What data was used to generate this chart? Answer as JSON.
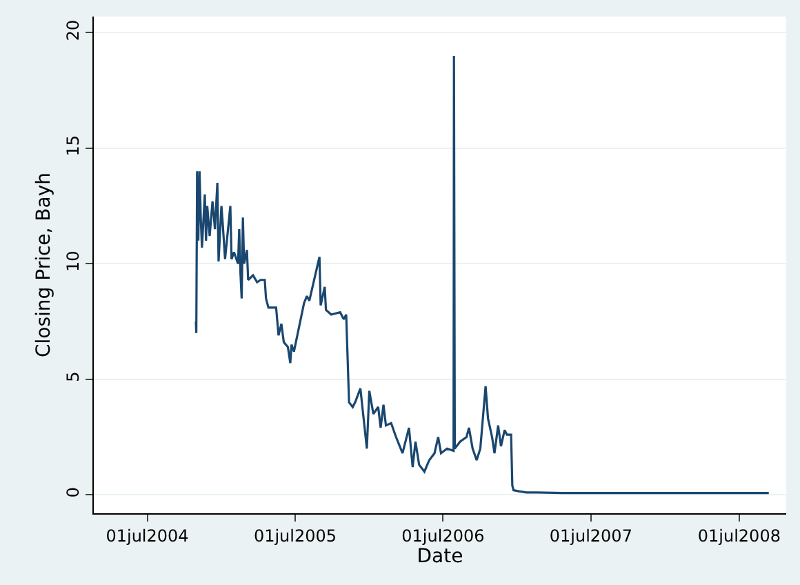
{
  "chart_data": {
    "type": "line",
    "xlabel": "Date",
    "ylabel": "Closing Price, Bayh",
    "xlim": [
      "2004-02-20",
      "2008-10-25"
    ],
    "xticks": [
      {
        "value": "2004-07-01",
        "label": "01jul2004"
      },
      {
        "value": "2005-07-01",
        "label": "01jul2005"
      },
      {
        "value": "2006-07-01",
        "label": "01jul2006"
      },
      {
        "value": "2007-07-01",
        "label": "01jul2007"
      },
      {
        "value": "2008-07-01",
        "label": "01jul2008"
      }
    ],
    "ylim": [
      -0.8,
      20.7
    ],
    "yticks": [
      0,
      5,
      10,
      15,
      20
    ],
    "grid": "y",
    "series": [
      {
        "color": "#1a476f",
        "x": [
          "2004-10-29",
          "2004-10-30",
          "2004-11-01",
          "2004-11-04",
          "2004-11-07",
          "2004-11-10",
          "2004-11-13",
          "2004-11-20",
          "2004-11-23",
          "2004-11-26",
          "2004-12-02",
          "2004-12-09",
          "2004-12-15",
          "2004-12-21",
          "2004-12-24",
          "2004-12-31",
          "2005-01-03",
          "2005-01-09",
          "2005-01-22",
          "2005-01-25",
          "2005-01-31",
          "2005-02-10",
          "2005-02-13",
          "2005-02-16",
          "2005-02-19",
          "2005-02-22",
          "2005-02-25",
          "2005-03-04",
          "2005-03-07",
          "2005-03-19",
          "2005-03-29",
          "2005-04-07",
          "2005-04-17",
          "2005-04-20",
          "2005-04-26",
          "2005-05-15",
          "2005-05-21",
          "2005-05-28",
          "2005-06-03",
          "2005-06-13",
          "2005-06-19",
          "2005-06-22",
          "2005-06-28",
          "2005-07-23",
          "2005-07-30",
          "2005-08-05",
          "2005-08-30",
          "2005-09-02",
          "2005-09-12",
          "2005-09-15",
          "2005-09-28",
          "2005-10-20",
          "2005-10-29",
          "2005-11-04",
          "2005-11-11",
          "2005-11-20",
          "2005-11-26",
          "2005-12-09",
          "2005-12-25",
          "2005-12-31",
          "2006-01-10",
          "2006-01-22",
          "2006-01-28",
          "2006-02-04",
          "2006-02-10",
          "2006-02-23",
          "2006-03-07",
          "2006-03-23",
          "2006-04-08",
          "2006-04-17",
          "2006-04-24",
          "2006-05-03",
          "2006-05-16",
          "2006-05-28",
          "2006-06-10",
          "2006-06-19",
          "2006-06-26",
          "2006-07-11",
          "2006-07-27",
          "2006-07-28",
          "2006-07-30",
          "2006-08-12",
          "2006-08-28",
          "2006-09-03",
          "2006-09-12",
          "2006-09-22",
          "2006-10-01",
          "2006-10-14",
          "2006-10-20",
          "2006-10-30",
          "2006-11-05",
          "2006-11-14",
          "2006-11-21",
          "2006-11-30",
          "2006-12-06",
          "2006-12-16",
          "2006-12-19",
          "2006-12-22",
          "2007-01-04",
          "2007-01-23",
          "2007-02-17",
          "2007-04-21",
          "2008-09-12"
        ],
        "values": [
          7.5,
          7.0,
          14,
          11,
          14,
          12,
          10.7,
          13,
          11,
          12.5,
          11.2,
          12.7,
          11.5,
          13.5,
          10.1,
          12.5,
          11.8,
          10.2,
          12.5,
          10.2,
          10.5,
          10,
          11.5,
          9.6,
          8.5,
          12,
          10,
          10.6,
          9.3,
          9.5,
          9.2,
          9.3,
          9.3,
          8.5,
          8.1,
          8.1,
          6.9,
          7.4,
          6.6,
          6.4,
          5.7,
          6.5,
          6.2,
          8.3,
          8.6,
          8.4,
          10.3,
          8.2,
          9.0,
          8.0,
          7.8,
          7.9,
          7.6,
          7.8,
          4.0,
          3.8,
          4.0,
          4.6,
          2.0,
          4.5,
          3.5,
          3.8,
          2.9,
          3.9,
          3.0,
          3.1,
          2.5,
          1.8,
          2.9,
          1.2,
          2.3,
          1.3,
          1.0,
          1.5,
          1.8,
          2.5,
          1.8,
          2.0,
          1.9,
          19,
          2.0,
          2.3,
          2.5,
          2.9,
          2.0,
          1.5,
          2.0,
          4.7,
          3.3,
          2.5,
          1.8,
          3.0,
          2.1,
          2.8,
          2.6,
          2.6,
          0.4,
          0.2,
          0.15,
          0.1,
          0.1,
          0.08,
          0.08
        ]
      }
    ]
  }
}
